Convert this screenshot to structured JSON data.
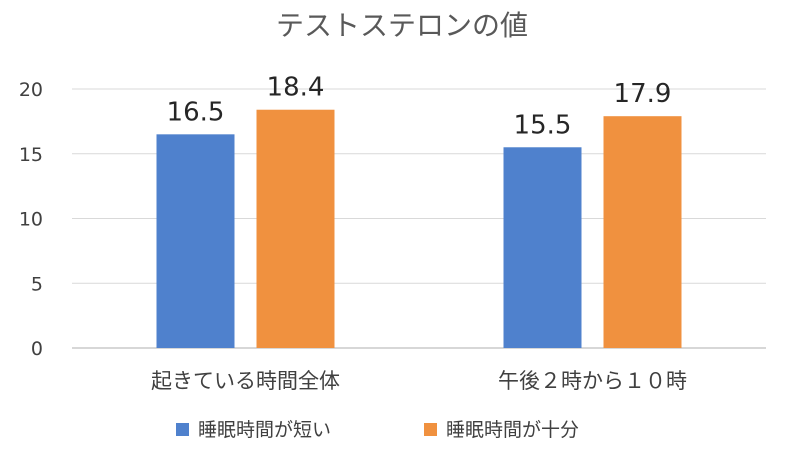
{
  "chart_data": {
    "type": "bar",
    "title": "テストステロンの値",
    "categories": [
      "起きている時間全体",
      "午後２時から１０時"
    ],
    "series": [
      {
        "name": "睡眠時間が短い",
        "values": [
          16.5,
          15.5
        ],
        "color": "#4f81cd"
      },
      {
        "name": "睡眠時間が十分",
        "values": [
          18.4,
          17.9
        ],
        "color": "#f0913f"
      }
    ],
    "ylim": [
      0,
      20
    ],
    "yticks": [
      0,
      5,
      10,
      15,
      20
    ],
    "grid": true,
    "legend": "bottom",
    "data_labels": true
  }
}
